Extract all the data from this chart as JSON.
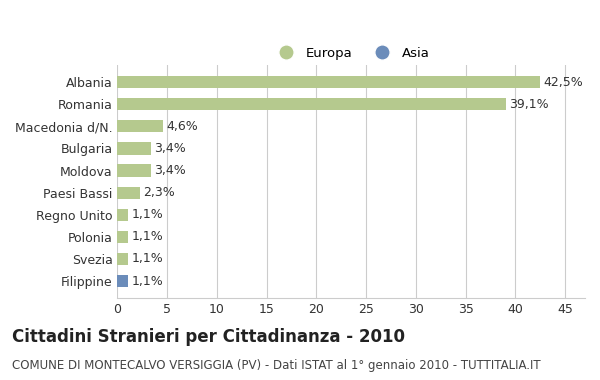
{
  "categories": [
    "Filippine",
    "Svezia",
    "Polonia",
    "Regno Unito",
    "Paesi Bassi",
    "Moldova",
    "Bulgaria",
    "Macedonia d/N.",
    "Romania",
    "Albania"
  ],
  "values": [
    1.1,
    1.1,
    1.1,
    1.1,
    2.3,
    3.4,
    3.4,
    4.6,
    39.1,
    42.5
  ],
  "labels": [
    "1,1%",
    "1,1%",
    "1,1%",
    "1,1%",
    "2,3%",
    "3,4%",
    "3,4%",
    "4,6%",
    "39,1%",
    "42,5%"
  ],
  "colors": [
    "#6b8cba",
    "#b5c98e",
    "#b5c98e",
    "#b5c98e",
    "#b5c98e",
    "#b5c98e",
    "#b5c98e",
    "#b5c98e",
    "#b5c98e",
    "#b5c98e"
  ],
  "legend_europa_color": "#b5c98e",
  "legend_asia_color": "#6b8cba",
  "title": "Cittadini Stranieri per Cittadinanza - 2010",
  "subtitle": "COMUNE DI MONTECALVO VERSIGGIA (PV) - Dati ISTAT al 1° gennaio 2010 - TUTTITALIA.IT",
  "xlabel_ticks": [
    0,
    5,
    10,
    15,
    20,
    25,
    30,
    35,
    40,
    45
  ],
  "xlim": [
    0,
    47
  ],
  "background_color": "#ffffff",
  "grid_color": "#cccccc",
  "bar_height": 0.55,
  "title_fontsize": 12,
  "subtitle_fontsize": 8.5,
  "tick_fontsize": 9,
  "label_fontsize": 9
}
